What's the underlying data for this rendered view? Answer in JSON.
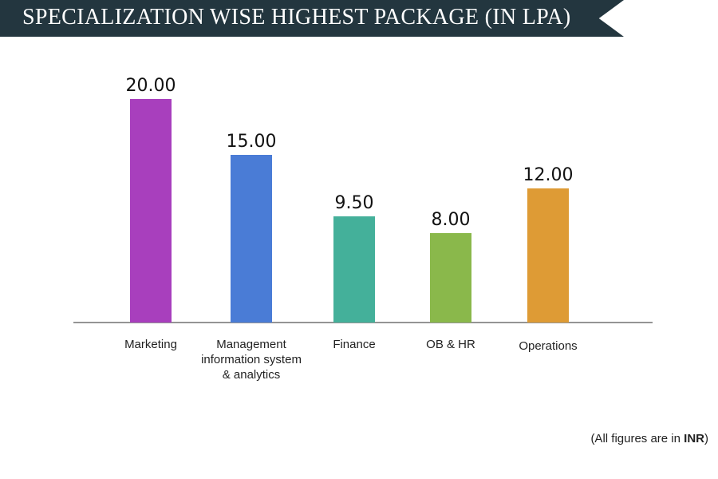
{
  "header": {
    "title": "SPECIALIZATION WISE HIGHEST PACKAGE (IN LPA)"
  },
  "chart_data": {
    "type": "bar",
    "title": "SPECIALIZATION WISE HIGHEST PACKAGE (IN LPA)",
    "categories": [
      "Marketing",
      "Management information system & analytics",
      "Finance",
      "OB & HR",
      "Operations"
    ],
    "category_lines": [
      [
        "Marketing"
      ],
      [
        "Management",
        "information system",
        "& analytics"
      ],
      [
        "Finance"
      ],
      [
        "OB & HR"
      ],
      [
        "Operations"
      ]
    ],
    "values": [
      20.0,
      15.0,
      9.5,
      8.0,
      12.0
    ],
    "value_labels": [
      "20.00",
      "15.00",
      "9.50",
      "8.00",
      "12.00"
    ],
    "colors": [
      "#a83fbd",
      "#4a7cd6",
      "#44b09a",
      "#8ab84b",
      "#de9b35"
    ],
    "ylim": [
      0,
      20
    ],
    "grid": false,
    "legend": "none",
    "xlabel": "",
    "ylabel": ""
  },
  "footnote": {
    "prefix": "(All figures are in ",
    "emphasis": "INR",
    "suffix": ")"
  }
}
